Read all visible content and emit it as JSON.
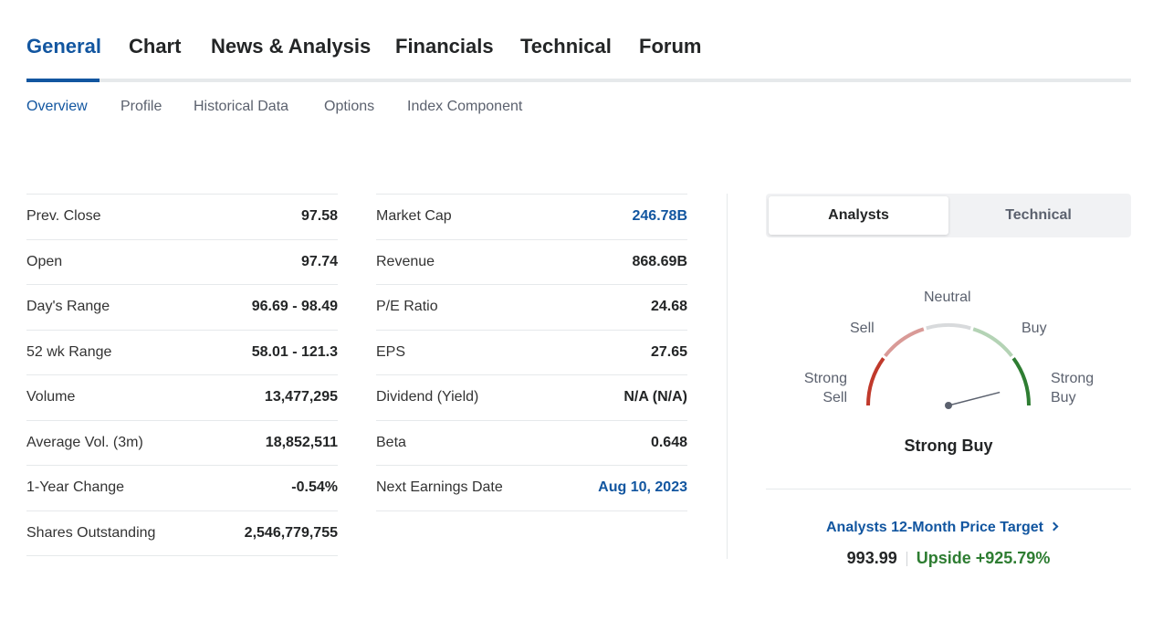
{
  "main_tabs": [
    {
      "label": "General",
      "active": true
    },
    {
      "label": "Chart"
    },
    {
      "label": "News & Analysis"
    },
    {
      "label": "Financials"
    },
    {
      "label": "Technical"
    },
    {
      "label": "Forum"
    }
  ],
  "sub_tabs": [
    {
      "label": "Overview",
      "active": true
    },
    {
      "label": "Profile"
    },
    {
      "label": "Historical Data"
    },
    {
      "label": "Options"
    },
    {
      "label": "Index Component"
    }
  ],
  "stats_left": [
    {
      "label": "Prev. Close",
      "value": "97.58"
    },
    {
      "label": "Open",
      "value": "97.74"
    },
    {
      "label": "Day's Range",
      "value": "96.69 - 98.49"
    },
    {
      "label": "52 wk Range",
      "value": "58.01 - 121.3"
    },
    {
      "label": "Volume",
      "value": "13,477,295"
    },
    {
      "label": "Average Vol. (3m)",
      "value": "18,852,511"
    },
    {
      "label": "1-Year Change",
      "value": "-0.54%"
    },
    {
      "label": "Shares Outstanding",
      "value": "2,546,779,755"
    }
  ],
  "stats_right": [
    {
      "label": "Market Cap",
      "value": "246.78B",
      "link": true
    },
    {
      "label": "Revenue",
      "value": "868.69B"
    },
    {
      "label": "P/E Ratio",
      "value": "24.68"
    },
    {
      "label": "EPS",
      "value": "27.65"
    },
    {
      "label": "Dividend (Yield)",
      "value": "N/A (N/A)"
    },
    {
      "label": "Beta",
      "value": "0.648"
    },
    {
      "label": "Next Earnings Date",
      "value": "Aug 10, 2023",
      "link": true
    }
  ],
  "sentiment": {
    "toggle": {
      "analysts_label": "Analysts",
      "technical_label": "Technical",
      "selected": "Analysts"
    },
    "gauge": {
      "labels": {
        "strong_sell": [
          "Strong",
          "Sell"
        ],
        "sell": "Sell",
        "neutral": "Neutral",
        "buy": "Buy",
        "strong_buy": [
          "Strong",
          "Buy"
        ]
      },
      "segment_colors": [
        "#c0392b",
        "#d99a97",
        "#d8dadc",
        "#b4d3b5",
        "#2e7d32"
      ],
      "needle_color": "#5b616e",
      "needle_level": 0.92
    },
    "result": "Strong Buy"
  },
  "price_target": {
    "link_label": "Analysts 12-Month Price Target",
    "price": "993.99",
    "upside": "Upside +925.79%"
  },
  "colors": {
    "accent": "#1256a0",
    "positive": "#2e7d32",
    "text": "#232526"
  }
}
